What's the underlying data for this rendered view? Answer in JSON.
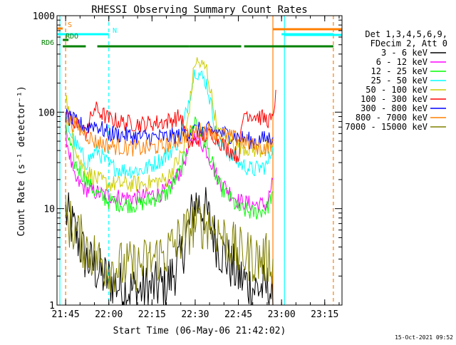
{
  "chart_data": {
    "type": "line",
    "title": "RHESSI Observing Summary Count Rates",
    "xlabel": "Start Time (06-May-06 21:42:02)",
    "ylabel": "Count Rate (s⁻¹ detector⁻¹)",
    "ylim": [
      1,
      1000
    ],
    "yscale": "log",
    "xlim": [
      "21:42",
      "23:21"
    ],
    "x_ticks": [
      "21:45",
      "22:00",
      "22:15",
      "22:30",
      "22:45",
      "23:00",
      "23:15"
    ],
    "y_ticks": [
      "1",
      "10",
      "100",
      "1000"
    ],
    "grid": false,
    "legend_position": "top-right",
    "legend_header": [
      "Det 1,3,4,5,6,9,",
      "FDecim 2, Att 0"
    ],
    "timestamp": "15-Oct-2021 09:52",
    "flags": [
      {
        "label": "S",
        "color": "#ff7f00",
        "segments": [
          [
            "21:42",
            "21:44"
          ]
        ]
      },
      {
        "label": "N",
        "color": "#00ffff",
        "segments": [
          [
            "21:42",
            "22:00"
          ],
          [
            "23:00",
            "23:18"
          ]
        ]
      },
      {
        "label": "RDO",
        "color": "#008000",
        "segments": [
          [
            "21:44",
            "21:46"
          ]
        ]
      },
      {
        "label": "RD6",
        "color": "#008000",
        "segments": [
          [
            "21:44",
            "21:52"
          ],
          [
            "21:56",
            "22:28"
          ],
          [
            "22:28",
            "22:46"
          ],
          [
            "22:47",
            "23:18"
          ]
        ]
      }
    ],
    "vertical_markers": [
      {
        "time": "21:43",
        "color": "#00ffff",
        "style": "solid"
      },
      {
        "time": "21:45",
        "color": "#ff7f00",
        "style": "dashed"
      },
      {
        "time": "22:00",
        "color": "#00ffff",
        "style": "dashed"
      },
      {
        "time": "22:57",
        "color": "#ff7f00",
        "style": "solid"
      },
      {
        "time": "23:01",
        "color": "#00ffff",
        "style": "solid"
      },
      {
        "time": "23:18",
        "color": "#ff7f00",
        "style": "dashed"
      }
    ],
    "series": [
      {
        "name": "3 - 6 keV",
        "color": "#000000",
        "points": [
          [
            "21:45",
            9
          ],
          [
            "21:48",
            6
          ],
          [
            "21:52",
            3
          ],
          [
            "21:58",
            2
          ],
          [
            "22:05",
            1.5
          ],
          [
            "22:10",
            1.4
          ],
          [
            "22:20",
            1.6
          ],
          [
            "22:25",
            3
          ],
          [
            "22:30",
            12
          ],
          [
            "22:34",
            9
          ],
          [
            "22:38",
            4
          ],
          [
            "22:45",
            2
          ],
          [
            "22:50",
            1.5
          ],
          [
            "22:56",
            1.5
          ],
          [
            "22:57",
            1
          ]
        ]
      },
      {
        "name": "6 - 12 keV",
        "color": "#ff00ff",
        "points": [
          [
            "21:45",
            60
          ],
          [
            "21:48",
            20
          ],
          [
            "21:52",
            16
          ],
          [
            "21:58",
            14
          ],
          [
            "22:05",
            13
          ],
          [
            "22:10",
            13
          ],
          [
            "22:20",
            15
          ],
          [
            "22:25",
            25
          ],
          [
            "22:30",
            60
          ],
          [
            "22:34",
            40
          ],
          [
            "22:38",
            20
          ],
          [
            "22:45",
            12
          ],
          [
            "22:50",
            11
          ],
          [
            "22:55",
            11
          ],
          [
            "22:57",
            20
          ]
        ]
      },
      {
        "name": "12 - 25 keV",
        "color": "#00ff00",
        "points": [
          [
            "21:45",
            70
          ],
          [
            "21:48",
            30
          ],
          [
            "21:52",
            20
          ],
          [
            "21:56",
            14
          ],
          [
            "22:00",
            12
          ],
          [
            "22:05",
            11
          ],
          [
            "22:10",
            11
          ],
          [
            "22:20",
            14
          ],
          [
            "22:25",
            25
          ],
          [
            "22:30",
            85
          ],
          [
            "22:34",
            45
          ],
          [
            "22:38",
            18
          ],
          [
            "22:45",
            10
          ],
          [
            "22:50",
            9
          ],
          [
            "22:55",
            10
          ],
          [
            "22:57",
            15
          ]
        ]
      },
      {
        "name": "25 - 50 keV",
        "color": "#00ffff",
        "points": [
          [
            "21:45",
            80
          ],
          [
            "21:48",
            50
          ],
          [
            "21:52",
            30
          ],
          [
            "21:56",
            40
          ],
          [
            "22:00",
            28
          ],
          [
            "22:05",
            25
          ],
          [
            "22:12",
            25
          ],
          [
            "22:20",
            35
          ],
          [
            "22:25",
            55
          ],
          [
            "22:30",
            280
          ],
          [
            "22:34",
            200
          ],
          [
            "22:38",
            50
          ],
          [
            "22:45",
            30
          ],
          [
            "22:50",
            25
          ],
          [
            "22:55",
            28
          ],
          [
            "22:57",
            45
          ]
        ]
      },
      {
        "name": "50 - 100 keV",
        "color": "#cccc00",
        "points": [
          [
            "21:45",
            150
          ],
          [
            "21:48",
            50
          ],
          [
            "21:50",
            30
          ],
          [
            "21:52",
            25
          ],
          [
            "21:56",
            20
          ],
          [
            "22:00",
            18
          ],
          [
            "22:05",
            18
          ],
          [
            "22:12",
            18
          ],
          [
            "22:20",
            20
          ],
          [
            "22:26",
            40
          ],
          [
            "22:30",
            340
          ],
          [
            "22:34",
            280
          ],
          [
            "22:38",
            60
          ],
          [
            "22:45",
            45
          ],
          [
            "22:52",
            40
          ],
          [
            "22:57",
            45
          ]
        ]
      },
      {
        "name": "100 - 300 keV",
        "color": "#ff0000",
        "points": [
          [
            "21:45",
            95
          ],
          [
            "21:48",
            80
          ],
          [
            "21:52",
            60
          ],
          [
            "21:55",
            110
          ],
          [
            "22:00",
            85
          ],
          [
            "22:05",
            78
          ],
          [
            "22:12",
            75
          ],
          [
            "22:20",
            80
          ],
          [
            "22:25",
            90
          ],
          [
            "22:28",
            45
          ],
          [
            "22:32",
            55
          ],
          [
            "22:36",
            60
          ],
          [
            "22:40",
            45
          ],
          [
            "22:45",
            35
          ],
          [
            "22:47",
            100
          ],
          [
            "22:52",
            90
          ],
          [
            "22:57",
            80
          ],
          [
            "22:58",
            170
          ]
        ]
      },
      {
        "name": "300 - 800 keV",
        "color": "#0000ff",
        "points": [
          [
            "21:45",
            90
          ],
          [
            "21:48",
            80
          ],
          [
            "21:52",
            70
          ],
          [
            "21:55",
            75
          ],
          [
            "22:00",
            60
          ],
          [
            "22:05",
            58
          ],
          [
            "22:12",
            55
          ],
          [
            "22:20",
            55
          ],
          [
            "22:25",
            58
          ],
          [
            "22:30",
            65
          ],
          [
            "22:35",
            65
          ],
          [
            "22:40",
            60
          ],
          [
            "22:45",
            55
          ],
          [
            "22:50",
            50
          ],
          [
            "22:57",
            55
          ]
        ]
      },
      {
        "name": "800 - 7000 keV",
        "color": "#ff7f00",
        "points": [
          [
            "21:45",
            85
          ],
          [
            "21:48",
            75
          ],
          [
            "21:52",
            60
          ],
          [
            "21:55",
            50
          ],
          [
            "22:00",
            45
          ],
          [
            "22:05",
            43
          ],
          [
            "22:12",
            42
          ],
          [
            "22:20",
            45
          ],
          [
            "22:28",
            60
          ],
          [
            "22:32",
            65
          ],
          [
            "22:36",
            63
          ],
          [
            "22:40",
            58
          ],
          [
            "22:45",
            52
          ],
          [
            "22:50",
            45
          ],
          [
            "22:55",
            42
          ],
          [
            "22:57",
            50
          ]
        ]
      },
      {
        "name": "7000 - 15000 keV",
        "color": "#808000",
        "points": [
          [
            "21:45",
            8
          ],
          [
            "21:48",
            6
          ],
          [
            "21:52",
            4
          ],
          [
            "21:56",
            3
          ],
          [
            "22:00",
            2.5
          ],
          [
            "22:10",
            2.5
          ],
          [
            "22:20",
            3.5
          ],
          [
            "22:25",
            5
          ],
          [
            "22:30",
            7
          ],
          [
            "22:35",
            7
          ],
          [
            "22:40",
            5
          ],
          [
            "22:45",
            3.5
          ],
          [
            "22:52",
            3
          ],
          [
            "22:57",
            3
          ]
        ]
      }
    ]
  },
  "colors": {
    "background": "#ffffff",
    "axis": "#000000"
  }
}
